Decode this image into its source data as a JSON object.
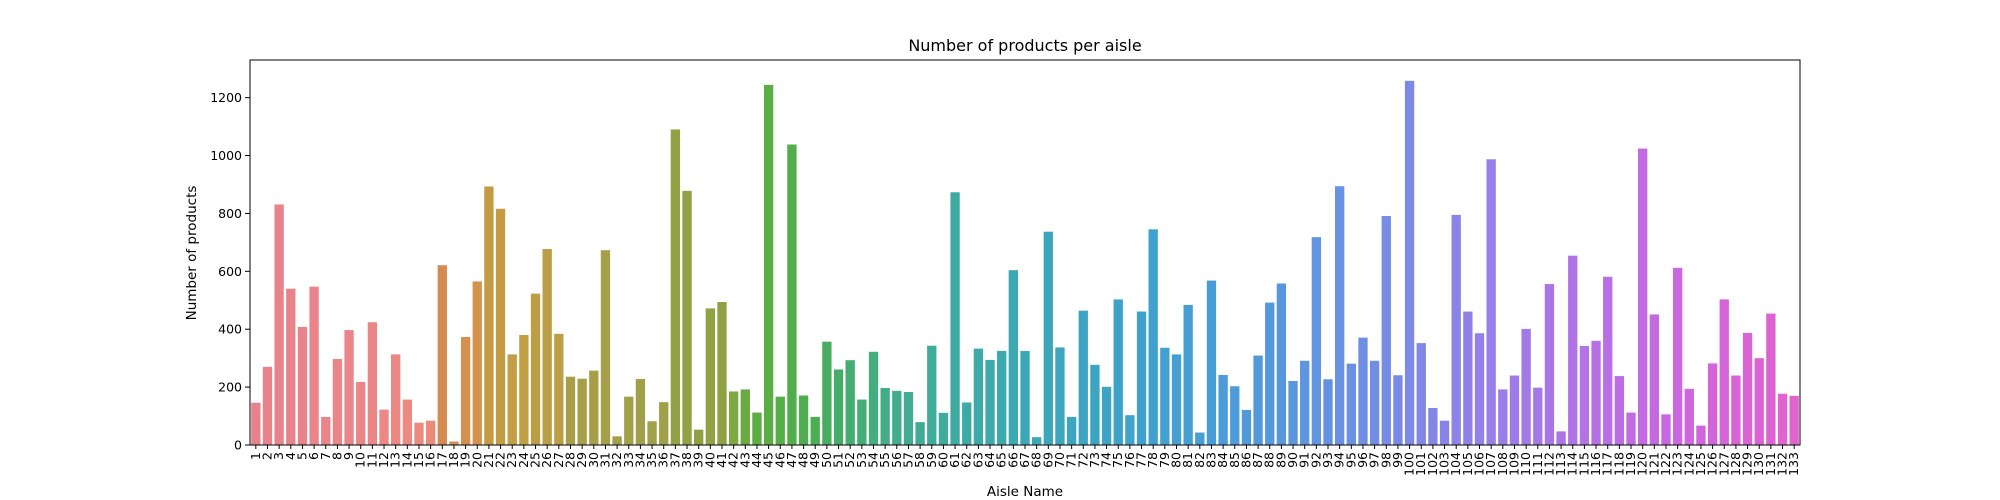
{
  "chart_data": {
    "type": "bar",
    "title": "Number of products per aisle",
    "xlabel": "Aisle Name",
    "ylabel": "Number of products",
    "ylim": [
      0,
      1330
    ],
    "yticks": [
      0,
      200,
      400,
      600,
      800,
      1000,
      1200
    ],
    "grid": false,
    "categories": [
      "1",
      "2",
      "3",
      "4",
      "5",
      "6",
      "7",
      "8",
      "9",
      "10",
      "11",
      "12",
      "13",
      "14",
      "15",
      "16",
      "17",
      "18",
      "19",
      "20",
      "21",
      "22",
      "23",
      "24",
      "25",
      "26",
      "27",
      "28",
      "29",
      "30",
      "31",
      "32",
      "33",
      "34",
      "35",
      "36",
      "37",
      "38",
      "39",
      "40",
      "41",
      "42",
      "43",
      "44",
      "45",
      "46",
      "47",
      "48",
      "49",
      "50",
      "51",
      "52",
      "53",
      "54",
      "55",
      "56",
      "57",
      "58",
      "59",
      "60",
      "61",
      "62",
      "63",
      "64",
      "65",
      "66",
      "67",
      "68",
      "69",
      "70",
      "71",
      "72",
      "73",
      "74",
      "75",
      "76",
      "77",
      "78",
      "79",
      "80",
      "81",
      "82",
      "83",
      "84",
      "85",
      "86",
      "87",
      "88",
      "89",
      "90",
      "91",
      "92",
      "93",
      "94",
      "95",
      "96",
      "97",
      "98",
      "99",
      "100",
      "101",
      "102",
      "103",
      "104",
      "105",
      "106",
      "107",
      "108",
      "109",
      "110",
      "111",
      "112",
      "113",
      "114",
      "115",
      "116",
      "117",
      "118",
      "119",
      "120",
      "121",
      "122",
      "123",
      "124",
      "125",
      "126",
      "127",
      "128",
      "129",
      "130",
      "131",
      "132",
      "133"
    ],
    "values": [
      146,
      270,
      831,
      540,
      408,
      547,
      97,
      297,
      397,
      218,
      424,
      122,
      313,
      157,
      77,
      84,
      621,
      12,
      373,
      565,
      893,
      816,
      313,
      380,
      523,
      677,
      384,
      236,
      229,
      257,
      673,
      30,
      167,
      228,
      82,
      148,
      1090,
      878,
      53,
      472,
      494,
      185,
      192,
      112,
      1244,
      167,
      1038,
      171,
      97,
      357,
      261,
      293,
      157,
      322,
      197,
      187,
      183,
      79,
      343,
      111,
      873,
      147,
      333,
      294,
      325,
      604,
      325,
      27,
      737,
      337,
      97,
      464,
      277,
      201,
      503,
      103,
      461,
      745,
      336,
      313,
      484,
      43,
      568,
      242,
      203,
      121,
      309,
      492,
      558,
      221,
      291,
      718,
      227,
      894,
      281,
      371,
      291,
      791,
      241,
      1258,
      352,
      128,
      84,
      795,
      461,
      386,
      987,
      192,
      240,
      401,
      198,
      556,
      47,
      654,
      342,
      360,
      581,
      238,
      112,
      1024,
      451,
      106,
      612,
      194,
      67,
      282,
      503,
      240,
      387,
      300,
      454,
      177,
      170
    ],
    "colors": [
      "#e8828a",
      "#e9838a",
      "#e9838a",
      "#e9838a",
      "#e9838a",
      "#e9848a",
      "#ea848a",
      "#ea8589",
      "#ea8589",
      "#eb8687",
      "#eb8686",
      "#eb8785",
      "#eb8883",
      "#ec8980",
      "#ec8a7e",
      "#ec8b7c",
      "#d58a4f",
      "#d78d4f",
      "#d58f4f",
      "#d4924d",
      "#c59a44",
      "#c49c44",
      "#c39e44",
      "#c1a045",
      "#be9e45",
      "#bc9e46",
      "#bb9e46",
      "#a89d48",
      "#a79e48",
      "#a69f48",
      "#a59f49",
      "#a39f49",
      "#a2a049",
      "#a1a04a",
      "#a0a04a",
      "#9fa14a",
      "#92a143",
      "#91a143",
      "#90a143",
      "#8fa244",
      "#8ea244",
      "#7ea841",
      "#6aaa40",
      "#5cad42",
      "#5aae45",
      "#56ae48",
      "#52ae4b",
      "#4eae4f",
      "#4aae53",
      "#48ad60",
      "#46ad69",
      "#45ad71",
      "#44ad78",
      "#43ad7f",
      "#42ad85",
      "#42ac8b",
      "#41ac90",
      "#40ac95",
      "#3fab99",
      "#3fab9d",
      "#3eaaa1",
      "#3eaaa5",
      "#3da9a8",
      "#3da9ac",
      "#3ca9af",
      "#3ca8b2",
      "#3ca8b5",
      "#3ca7b8",
      "#3ca7bb",
      "#3ca6bd",
      "#3ca6c0",
      "#3da5c2",
      "#3da5c4",
      "#3ea4c6",
      "#3ea3c8",
      "#3fa3ca",
      "#40a2cc",
      "#41a1ce",
      "#42a1d0",
      "#44a0d2",
      "#459fd3",
      "#479ed5",
      "#499dd6",
      "#4b9cd8",
      "#4d9bd9",
      "#509ada",
      "#5299dc",
      "#5598dd",
      "#5897de",
      "#5b96df",
      "#5e95e0",
      "#6194e1",
      "#6492e2",
      "#6891e3",
      "#6b90e3",
      "#6f8fe4",
      "#728de5",
      "#768ce5",
      "#798ae6",
      "#7d89e6",
      "#8187e7",
      "#8486e7",
      "#8884e7",
      "#8c83e8",
      "#8f81e8",
      "#9380e8",
      "#977ee8",
      "#9a7de8",
      "#9e7be8",
      "#a17ae8",
      "#a578e7",
      "#a876e7",
      "#ac75e7",
      "#af73e6",
      "#b372e6",
      "#b670e5",
      "#b96fe5",
      "#bc6de4",
      "#bf6ce3",
      "#c26ae2",
      "#c569e1",
      "#c868e0",
      "#cb67df",
      "#ce66de",
      "#d165dc",
      "#d364db",
      "#d664d9",
      "#d863d8",
      "#da63d6",
      "#dc63d4",
      "#de63d2",
      "#e063d0",
      "#e163ce"
    ]
  }
}
